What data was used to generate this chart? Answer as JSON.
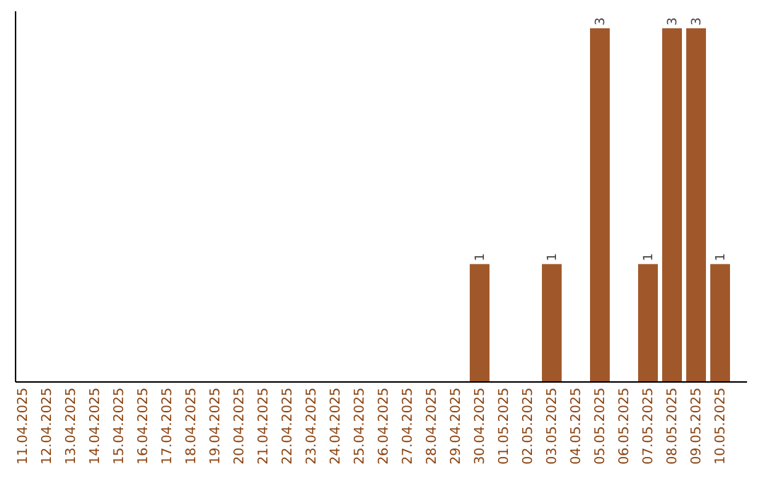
{
  "chart_data": {
    "type": "bar",
    "categories": [
      "11.04.2025",
      "12.04.2025",
      "13.04.2025",
      "14.04.2025",
      "15.04.2025",
      "16.04.2025",
      "17.04.2025",
      "18.04.2025",
      "19.04.2025",
      "20.04.2025",
      "21.04.2025",
      "22.04.2025",
      "23.04.2025",
      "24.04.2025",
      "25.04.2025",
      "26.04.2025",
      "27.04.2025",
      "28.04.2025",
      "29.04.2025",
      "30.04.2025",
      "01.05.2025",
      "02.05.2025",
      "03.05.2025",
      "04.05.2025",
      "05.05.2025",
      "06.05.2025",
      "07.05.2025",
      "08.05.2025",
      "09.05.2025",
      "10.05.2025"
    ],
    "values": [
      null,
      null,
      null,
      null,
      null,
      null,
      null,
      null,
      null,
      null,
      null,
      null,
      null,
      null,
      null,
      null,
      null,
      null,
      null,
      1,
      null,
      null,
      1,
      null,
      3,
      null,
      1,
      3,
      3,
      1
    ],
    "value_labels": [
      null,
      null,
      null,
      null,
      null,
      null,
      null,
      null,
      null,
      null,
      null,
      null,
      null,
      null,
      null,
      null,
      null,
      null,
      null,
      "1",
      null,
      null,
      "1",
      null,
      "3",
      null,
      "1",
      "3",
      "3",
      "1"
    ],
    "color": "#a0582a"
  }
}
